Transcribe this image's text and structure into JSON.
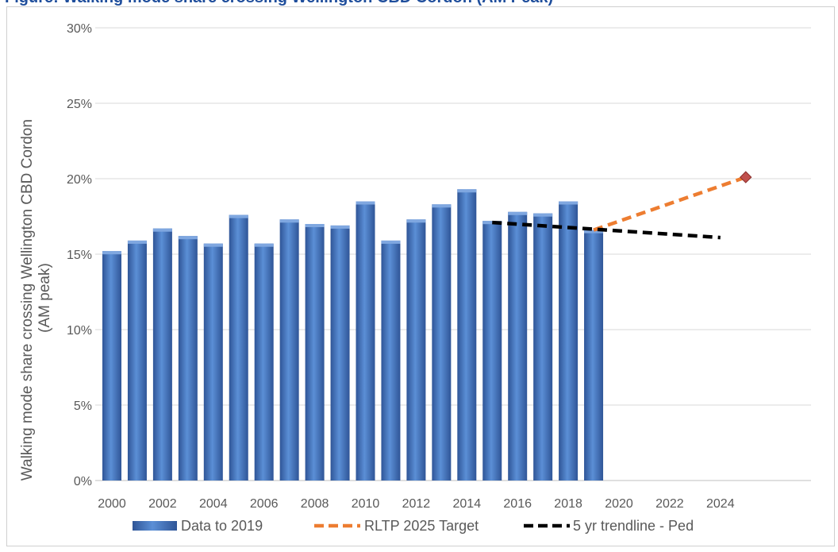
{
  "caption": "Figure: Walking mode share crossing Wellington CBD Cordon (AM Peak)",
  "chart_data": {
    "type": "bar",
    "ylabel": "Walking mode share crossing Wellington CBD Cordon (AM peak)",
    "ylim": [
      0,
      30
    ],
    "y_ticks": [
      "0%",
      "5%",
      "10%",
      "15%",
      "20%",
      "25%",
      "30%"
    ],
    "x_tick_labels": [
      "2000",
      "2002",
      "2004",
      "2006",
      "2008",
      "2010",
      "2012",
      "2014",
      "2016",
      "2018",
      "2020",
      "2022",
      "2024"
    ],
    "x_range": [
      2000,
      2025
    ],
    "grid": true,
    "legend_position": "bottom",
    "series": [
      {
        "name": "Data to 2019",
        "kind": "bar",
        "color": "#4472c4",
        "x": [
          2000,
          2001,
          2002,
          2003,
          2004,
          2005,
          2006,
          2007,
          2008,
          2009,
          2010,
          2011,
          2012,
          2013,
          2014,
          2015,
          2016,
          2017,
          2018,
          2019
        ],
        "values": [
          15.2,
          15.9,
          16.7,
          16.2,
          15.7,
          17.6,
          15.7,
          17.3,
          17.0,
          16.9,
          18.5,
          15.9,
          17.3,
          18.3,
          19.3,
          17.2,
          17.8,
          17.7,
          18.5,
          16.6
        ]
      },
      {
        "name": "RLTP 2025 Target",
        "kind": "line",
        "style": "dashed",
        "color": "#ed7d31",
        "x": [
          2019,
          2025
        ],
        "values": [
          16.6,
          20.1
        ]
      },
      {
        "name": "5 yr trendline - Ped",
        "kind": "line",
        "style": "dashed",
        "color": "#000000",
        "x": [
          2015,
          2024
        ],
        "values": [
          17.1,
          16.1
        ]
      }
    ],
    "target_marker": {
      "x": 2025,
      "value": 20.1,
      "color": "#c0504d",
      "shape": "diamond"
    }
  }
}
